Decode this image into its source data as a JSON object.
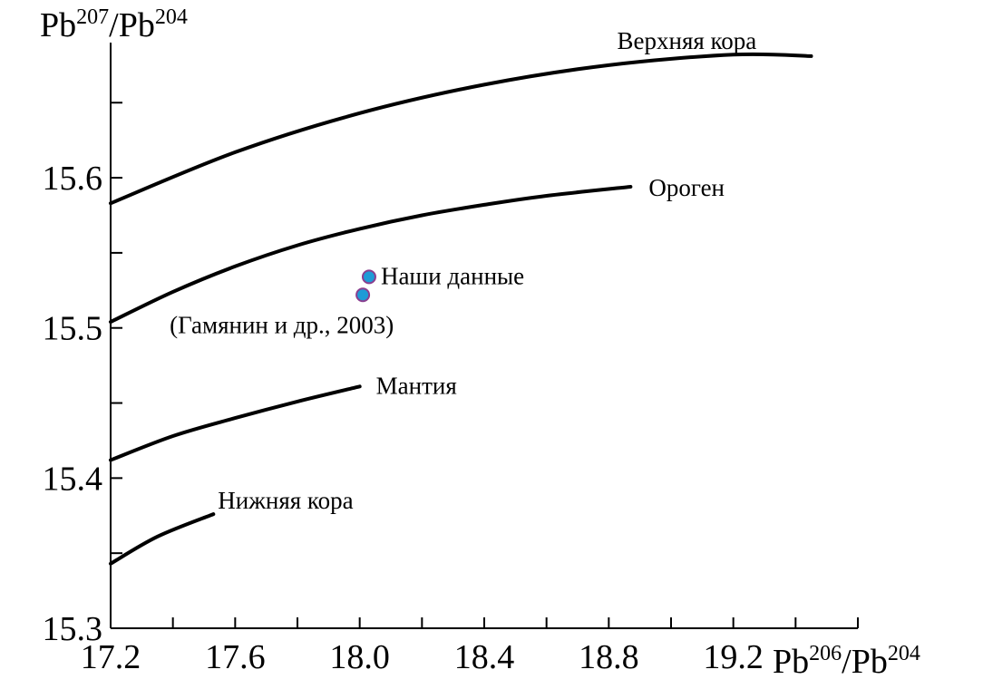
{
  "chart_data": {
    "type": "line",
    "xlabel": {
      "base1": "Pb",
      "sup1": "206",
      "sep": "/",
      "base2": "Pb",
      "sup2": "204"
    },
    "ylabel": {
      "base1": "Pb",
      "sup1": "207",
      "sep": "/",
      "base2": "Pb",
      "sup2": "204"
    },
    "xlim": [
      17.2,
      19.6
    ],
    "ylim": [
      15.3,
      15.69
    ],
    "x_ticks": [
      17.2,
      17.4,
      17.6,
      17.8,
      18.0,
      18.2,
      18.4,
      18.6,
      18.8,
      19.0,
      19.2,
      19.4,
      19.6
    ],
    "x_tick_labels": [
      "17.2",
      "17.6",
      "18.0",
      "18.4",
      "18.8",
      "19.2"
    ],
    "y_ticks": [
      15.3,
      15.35,
      15.4,
      15.45,
      15.5,
      15.55,
      15.6,
      15.65
    ],
    "y_tick_labels": [
      "15.3",
      "15.4",
      "15.5",
      "15.6"
    ],
    "series": [
      {
        "name": "Верхняя кора",
        "x": [
          17.2,
          17.6,
          18.0,
          18.4,
          18.8,
          19.2,
          19.45
        ],
        "y": [
          15.583,
          15.617,
          15.643,
          15.662,
          15.675,
          15.682,
          15.681
        ]
      },
      {
        "name": "Ороген",
        "x": [
          17.2,
          17.4,
          17.6,
          17.8,
          18.0,
          18.2,
          18.4,
          18.6,
          18.87
        ],
        "y": [
          15.504,
          15.524,
          15.541,
          15.555,
          15.566,
          15.575,
          15.582,
          15.588,
          15.594
        ]
      },
      {
        "name": "Мантия",
        "x": [
          17.2,
          17.4,
          17.6,
          17.8,
          18.0
        ],
        "y": [
          15.412,
          15.428,
          15.44,
          15.451,
          15.461
        ]
      },
      {
        "name": "Нижняя кора",
        "x": [
          17.2,
          17.35,
          17.53
        ],
        "y": [
          15.343,
          15.361,
          15.376
        ]
      }
    ],
    "points_series": {
      "name": "Наши данные",
      "note": "(Гамянин и др., 2003)",
      "points": [
        {
          "x": 18.03,
          "y": 15.534
        },
        {
          "x": 18.01,
          "y": 15.522
        }
      ],
      "fill": "#1f9bd7",
      "stroke": "#8a3f8f"
    },
    "grid": false,
    "line_color": "#000000"
  }
}
